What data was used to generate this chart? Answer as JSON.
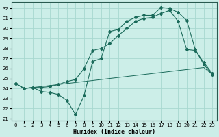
{
  "title": "",
  "xlabel": "Humidex (Indice chaleur)",
  "ylabel": "",
  "background_color": "#cceee8",
  "grid_color": "#a8d8d0",
  "line_color": "#1a6a5a",
  "xlim": [
    -0.5,
    23.5
  ],
  "ylim": [
    20.8,
    32.6
  ],
  "yticks": [
    21,
    22,
    23,
    24,
    25,
    26,
    27,
    28,
    29,
    30,
    31,
    32
  ],
  "xticks": [
    0,
    1,
    2,
    3,
    4,
    5,
    6,
    7,
    8,
    9,
    10,
    11,
    12,
    13,
    14,
    15,
    16,
    17,
    18,
    19,
    20,
    21,
    22,
    23
  ],
  "line1_x": [
    0,
    1,
    2,
    3,
    4,
    5,
    6,
    7,
    8,
    9,
    10,
    11,
    12,
    13,
    14,
    15,
    16,
    17,
    18,
    19,
    20,
    21,
    22,
    23
  ],
  "line1_y": [
    24.5,
    24.0,
    24.1,
    23.7,
    23.6,
    23.4,
    22.8,
    21.4,
    23.3,
    26.7,
    27.0,
    29.7,
    29.9,
    30.7,
    31.1,
    31.3,
    31.3,
    32.1,
    32.0,
    31.6,
    30.8,
    27.9,
    26.4,
    25.4
  ],
  "line2_x": [
    0,
    1,
    2,
    3,
    4,
    5,
    6,
    7,
    8,
    9,
    10,
    11,
    12,
    13,
    14,
    15,
    16,
    17,
    18,
    19,
    20,
    21,
    22,
    23
  ],
  "line2_y": [
    24.5,
    24.0,
    24.1,
    24.1,
    24.2,
    24.4,
    24.7,
    24.9,
    26.0,
    27.8,
    28.0,
    28.5,
    29.3,
    30.0,
    30.7,
    31.0,
    31.1,
    31.5,
    31.8,
    30.7,
    27.9,
    27.8,
    26.6,
    25.5
  ],
  "line3_x": [
    0,
    1,
    2,
    3,
    4,
    5,
    6,
    7,
    8,
    9,
    10,
    11,
    12,
    13,
    14,
    15,
    16,
    17,
    18,
    19,
    20,
    21,
    22,
    23
  ],
  "line3_y": [
    24.5,
    24.0,
    24.1,
    24.2,
    24.3,
    24.4,
    24.5,
    24.6,
    24.7,
    24.8,
    24.9,
    25.0,
    25.1,
    25.2,
    25.3,
    25.4,
    25.5,
    25.6,
    25.7,
    25.8,
    25.9,
    26.0,
    26.1,
    25.4
  ]
}
